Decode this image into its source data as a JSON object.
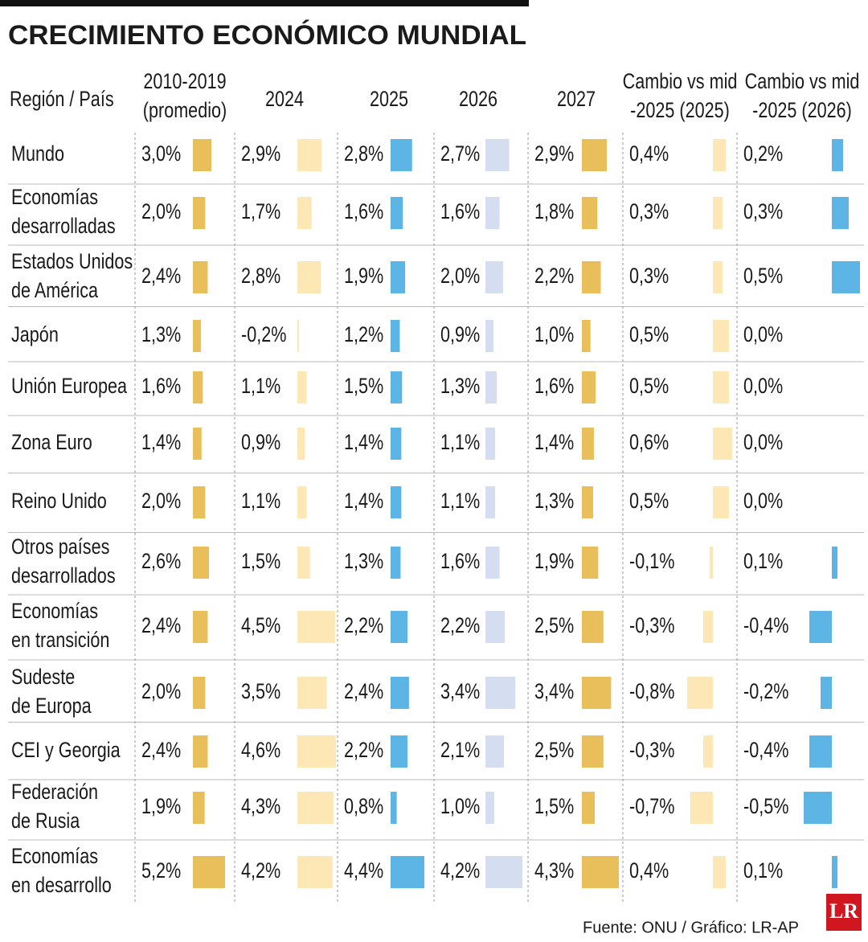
{
  "title": "CRECIMIENTO ECONÓMICO MUNDIAL",
  "table": {
    "columns": [
      [
        "Región / País"
      ],
      [
        "2010-2019",
        "(promedio)"
      ],
      [
        "2024"
      ],
      [
        "2025"
      ],
      [
        "2026"
      ],
      [
        "2027"
      ],
      [
        "Cambio vs mid",
        "-2025 (2025)"
      ],
      [
        "Cambio vs mid",
        "-2025 (2026)"
      ]
    ],
    "colors": [
      "#e8bf5a",
      "#fde7b4",
      "#5db5e6",
      "#d4def0",
      "#e8bf5a",
      "#fde7b4",
      "#5db5e6"
    ],
    "rows": [
      {
        "name": [
          "Mundo"
        ],
        "values": [
          3.0,
          2.9,
          2.8,
          2.7,
          2.9,
          0.4,
          0.2
        ],
        "value_labels": [
          "3,0%",
          "2,9%",
          "2,8%",
          "2,7%",
          "2,9%",
          "0,4%",
          "0,2%"
        ]
      },
      {
        "name": [
          "Economías",
          "desarrolladas"
        ],
        "values": [
          2.0,
          1.7,
          1.6,
          1.6,
          1.8,
          0.3,
          0.3
        ],
        "value_labels": [
          "2,0%",
          "1,7%",
          "1,6%",
          "1,6%",
          "1,8%",
          "0,3%",
          "0,3%"
        ]
      },
      {
        "name": [
          "Estados Unidos",
          "de América"
        ],
        "values": [
          2.4,
          2.8,
          1.9,
          2.0,
          2.2,
          0.3,
          0.5
        ],
        "value_labels": [
          "2,4%",
          "2,8%",
          "1,9%",
          "2,0%",
          "2,2%",
          "0,3%",
          "0,5%"
        ]
      },
      {
        "name": [
          "Japón"
        ],
        "values": [
          1.3,
          -0.2,
          1.2,
          0.9,
          1.0,
          0.5,
          0.0
        ],
        "value_labels": [
          "1,3%",
          "-0,2%",
          "1,2%",
          "0,9%",
          "1,0%",
          "0,5%",
          "0,0%"
        ]
      },
      {
        "name": [
          "Unión Europea"
        ],
        "values": [
          1.6,
          1.1,
          1.5,
          1.3,
          1.6,
          0.5,
          0.0
        ],
        "value_labels": [
          "1,6%",
          "1,1%",
          "1,5%",
          "1,3%",
          "1,6%",
          "0,5%",
          "0,0%"
        ]
      },
      {
        "name": [
          "Zona Euro"
        ],
        "values": [
          1.4,
          0.9,
          1.4,
          1.1,
          1.4,
          0.6,
          0.0
        ],
        "value_labels": [
          "1,4%",
          "0,9%",
          "1,4%",
          "1,1%",
          "1,4%",
          "0,6%",
          "0,0%"
        ]
      },
      {
        "name": [
          "Reino Unido"
        ],
        "values": [
          2.0,
          1.1,
          1.4,
          1.1,
          1.3,
          0.5,
          0.0
        ],
        "value_labels": [
          "2,0%",
          "1,1%",
          "1,4%",
          "1,1%",
          "1,3%",
          "0,5%",
          "0,0%"
        ]
      },
      {
        "name": [
          "Otros países",
          "desarrollados"
        ],
        "values": [
          2.6,
          1.5,
          1.3,
          1.6,
          1.9,
          -0.1,
          0.1
        ],
        "value_labels": [
          "2,6%",
          "1,5%",
          "1,3%",
          "1,6%",
          "1,9%",
          "-0,1%",
          "0,1%"
        ]
      },
      {
        "name": [
          "Economías",
          "en transición"
        ],
        "values": [
          2.4,
          4.5,
          2.2,
          2.2,
          2.5,
          -0.3,
          -0.4
        ],
        "value_labels": [
          "2,4%",
          "4,5%",
          "2,2%",
          "2,2%",
          "2,5%",
          "-0,3%",
          "-0,4%"
        ]
      },
      {
        "name": [
          "Sudeste",
          "de Europa"
        ],
        "values": [
          2.0,
          3.5,
          2.4,
          3.4,
          3.4,
          -0.8,
          -0.2
        ],
        "value_labels": [
          "2,0%",
          "3,5%",
          "2,4%",
          "3,4%",
          "3,4%",
          "-0,8%",
          "-0,2%"
        ]
      },
      {
        "name": [
          "CEI y Georgia"
        ],
        "values": [
          2.4,
          4.6,
          2.2,
          2.1,
          2.5,
          -0.3,
          -0.4
        ],
        "value_labels": [
          "2,4%",
          "4,6%",
          "2,2%",
          "2,1%",
          "2,5%",
          "-0,3%",
          "-0,4%"
        ]
      },
      {
        "name": [
          "Federación",
          "de Rusia"
        ],
        "values": [
          1.9,
          4.3,
          0.8,
          1.0,
          1.5,
          -0.7,
          -0.5
        ],
        "value_labels": [
          "1,9%",
          "4,3%",
          "0,8%",
          "1,0%",
          "1,5%",
          "-0,7%",
          "-0,5%"
        ]
      },
      {
        "name": [
          "Economías",
          "en desarrollo"
        ],
        "values": [
          5.2,
          4.2,
          4.4,
          4.2,
          4.3,
          0.4,
          0.1
        ],
        "value_labels": [
          "5,2%",
          "4,2%",
          "4,4%",
          "4,2%",
          "4,3%",
          "0,4%",
          "0,1%"
        ]
      }
    ]
  },
  "source": "Fuente:  ONU / Gráfico: LR-AP",
  "logo": "LR"
}
